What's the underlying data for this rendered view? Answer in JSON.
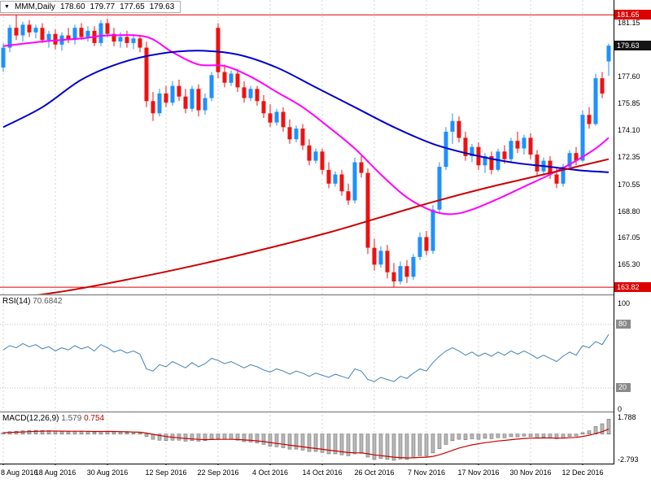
{
  "window": {
    "collapse_icon": "▼",
    "symbol_period": "MMM,Daily",
    "ohlc": {
      "open": "178.60",
      "high": "179.77",
      "low": "177.65",
      "close": "179.63"
    }
  },
  "colors": {
    "bull": "#1e90ff",
    "bear": "#ee1111",
    "ma_blue": "#0000cd",
    "ma_magenta": "#ff00ff",
    "ma_red": "#cc0000",
    "rsi_line": "#4682b4",
    "macd_bar_fill": "#b8b8b8",
    "macd_bar_stroke": "#6e6e6e",
    "macd_signal": "#cc0000",
    "level_line": "#dd0000",
    "badge_red": "#dd0000",
    "badge_dark": "#141414",
    "grid": "#d6d6d6",
    "separator": "#909090",
    "axis_line": "#000000"
  },
  "price_axis": {
    "labels": [
      {
        "text": "181.15",
        "price": 181.15
      },
      {
        "text": "177.60",
        "price": 177.6
      },
      {
        "text": "175.85",
        "price": 175.85
      },
      {
        "text": "174.10",
        "price": 174.1
      },
      {
        "text": "172.35",
        "price": 172.35
      },
      {
        "text": "170.55",
        "price": 170.55
      },
      {
        "text": "168.80",
        "price": 168.8
      },
      {
        "text": "167.05",
        "price": 167.05
      },
      {
        "text": "165.30",
        "price": 165.3
      }
    ],
    "badges": [
      {
        "text": "181.65",
        "price": 181.65,
        "style": "red"
      },
      {
        "text": "179.63",
        "price": 179.63,
        "style": "dark"
      },
      {
        "text": "163.82",
        "price": 163.82,
        "style": "red"
      }
    ]
  },
  "rsi_panel": {
    "name": "RSI(14)",
    "value": "70.6842",
    "axis": [
      {
        "text": "100",
        "v": 100,
        "badge": false
      },
      {
        "text": "80",
        "v": 80,
        "badge": true
      },
      {
        "text": "20",
        "v": 20,
        "badge": true
      },
      {
        "text": "0",
        "v": 0,
        "badge": false
      }
    ],
    "levels": [
      80,
      20
    ]
  },
  "macd_panel": {
    "name": "MACD(12,26,9)",
    "macd_value": "1.579",
    "signal_value": "0.754",
    "axis_max": {
      "text": "1.788",
      "v": 1.788
    },
    "axis_min": {
      "text": "-2.793",
      "v": -2.793
    }
  },
  "time_axis": {
    "labels": [
      "8 Aug 2016",
      "18 Aug 2016",
      "30 Aug 2016",
      "12 Sep 2016",
      "22 Sep 2016",
      "4 Oct 2016",
      "14 Oct 2016",
      "26 Oct 2016",
      "7 Nov 2016",
      "17 Nov 2016",
      "30 Nov 2016",
      "12 Dec 2016"
    ],
    "tick_indices": [
      0,
      8,
      16,
      25,
      33,
      41,
      49,
      57,
      65,
      73,
      81,
      89
    ]
  },
  "chart_data": [
    {
      "type": "candlestick",
      "title": "MMM Daily",
      "ylim": [
        163.4,
        182.3
      ],
      "high_level": 181.65,
      "low_level": 163.82,
      "last_candle": {
        "open": 178.6,
        "high": 179.77,
        "low": 177.65,
        "close": 179.63
      },
      "candles": [
        [
          178.2,
          179.8,
          177.9,
          179.5
        ],
        [
          179.5,
          181,
          179.2,
          180.8
        ],
        [
          180.8,
          181.65,
          180,
          180.3
        ],
        [
          180.3,
          181.2,
          179.9,
          181
        ],
        [
          181,
          181.3,
          180.2,
          180.5
        ],
        [
          180.5,
          181,
          180.1,
          180.8
        ],
        [
          180.8,
          181.1,
          179.8,
          180
        ],
        [
          180,
          180.6,
          179.5,
          180.4
        ],
        [
          180.4,
          180.7,
          179.4,
          179.7
        ],
        [
          179.7,
          180.5,
          179.3,
          180.3
        ],
        [
          180.3,
          180.8,
          179.8,
          180
        ],
        [
          180,
          181,
          179.7,
          180.8
        ],
        [
          180.8,
          181.1,
          180,
          180.2
        ],
        [
          180.2,
          180.9,
          179.9,
          180.6
        ],
        [
          180.6,
          180.9,
          179.6,
          179.8
        ],
        [
          179.8,
          181.3,
          179.6,
          181.1
        ],
        [
          181.1,
          181.4,
          180.2,
          180.4
        ],
        [
          180.4,
          180.8,
          179.6,
          179.9
        ],
        [
          179.9,
          180.5,
          179.5,
          180.2
        ],
        [
          180.2,
          180.6,
          179.5,
          179.8
        ],
        [
          179.8,
          180.4,
          179.4,
          180.1
        ],
        [
          180.1,
          180.3,
          179.2,
          179.5
        ],
        [
          179.5,
          179.9,
          175.6,
          176
        ],
        [
          176,
          176.6,
          174.7,
          175.2
        ],
        [
          175.2,
          176.8,
          175,
          176.5
        ],
        [
          176.5,
          177,
          175.6,
          175.9
        ],
        [
          175.9,
          177.3,
          175.7,
          177
        ],
        [
          177,
          177.4,
          176,
          176.3
        ],
        [
          176.3,
          176.8,
          175.2,
          175.5
        ],
        [
          175.5,
          177,
          175.3,
          176.8
        ],
        [
          176.8,
          177.1,
          175,
          175.4
        ],
        [
          175.4,
          176.5,
          175.1,
          176.2
        ],
        [
          176.2,
          177.9,
          176,
          177.7
        ],
        [
          180.8,
          181.1,
          177.5,
          177.9
        ],
        [
          177.9,
          178.4,
          176.9,
          177.2
        ],
        [
          177.2,
          178,
          177,
          177.8
        ],
        [
          177.8,
          178.1,
          176.6,
          176.9
        ],
        [
          176.9,
          177.3,
          175.9,
          176.2
        ],
        [
          176.2,
          177,
          176,
          176.8
        ],
        [
          176.8,
          177,
          175.7,
          176
        ],
        [
          176,
          176.4,
          174.9,
          175.2
        ],
        [
          175.2,
          175.8,
          174.3,
          174.6
        ],
        [
          174.6,
          175.5,
          174.4,
          175.3
        ],
        [
          175.3,
          175.6,
          174,
          174.3
        ],
        [
          174.3,
          174.8,
          173.2,
          173.5
        ],
        [
          173.5,
          174.4,
          173.3,
          174.2
        ],
        [
          174.2,
          174.5,
          172.8,
          173.1
        ],
        [
          173.1,
          173.5,
          171.8,
          172.1
        ],
        [
          172.1,
          172.9,
          171.9,
          172.7
        ],
        [
          172.7,
          172.9,
          171.2,
          171.5
        ],
        [
          171.5,
          172,
          170.3,
          170.6
        ],
        [
          170.6,
          171.4,
          170.4,
          171.2
        ],
        [
          171.2,
          171.5,
          169.8,
          170.1
        ],
        [
          170.1,
          170.6,
          169.2,
          169.5
        ],
        [
          169.5,
          172.3,
          169.3,
          172
        ],
        [
          172,
          172.4,
          171,
          171.3
        ],
        [
          171.3,
          171.6,
          166,
          166.4
        ],
        [
          166.4,
          167,
          164.9,
          165.3
        ],
        [
          165.3,
          166.5,
          165.1,
          166.2
        ],
        [
          166.2,
          166.6,
          164.4,
          164.8
        ],
        [
          164.8,
          165.4,
          163.82,
          164.2
        ],
        [
          164.2,
          165.5,
          164,
          165.2
        ],
        [
          165.2,
          165.6,
          164.1,
          164.5
        ],
        [
          164.5,
          166,
          164.3,
          165.8
        ],
        [
          165.8,
          167.4,
          165.6,
          167.1
        ],
        [
          167.1,
          167.5,
          165.9,
          166.2
        ],
        [
          166.2,
          169.2,
          166,
          168.9
        ],
        [
          168.9,
          172,
          168.7,
          171.7
        ],
        [
          171.7,
          174.3,
          171.5,
          174
        ],
        [
          174,
          175.2,
          173.2,
          174.7
        ],
        [
          174.7,
          175,
          173.3,
          173.6
        ],
        [
          173.6,
          174,
          172.1,
          172.4
        ],
        [
          172.4,
          173.2,
          172,
          173
        ],
        [
          173,
          173.3,
          171.5,
          171.8
        ],
        [
          171.8,
          172.6,
          171.3,
          172.4
        ],
        [
          172.4,
          172.7,
          171.2,
          171.5
        ],
        [
          171.5,
          172.9,
          171.4,
          172.7
        ],
        [
          172.7,
          173.1,
          171.9,
          172.2
        ],
        [
          172.2,
          173.6,
          172,
          173.4
        ],
        [
          173.4,
          174,
          172.6,
          172.9
        ],
        [
          172.9,
          173.8,
          172.5,
          173.6
        ],
        [
          173.6,
          173.9,
          172.2,
          172.5
        ],
        [
          172.5,
          172.8,
          171.1,
          171.4
        ],
        [
          171.4,
          172.3,
          171.2,
          172.1
        ],
        [
          172.1,
          172.4,
          170.9,
          171.2
        ],
        [
          171.2,
          171.6,
          170.3,
          170.6
        ],
        [
          170.6,
          171.9,
          170.4,
          171.7
        ],
        [
          171.7,
          172.8,
          171.5,
          172.6
        ],
        [
          172.6,
          173,
          171.8,
          172.1
        ],
        [
          172.1,
          175.4,
          172,
          175.1
        ],
        [
          175.1,
          175.6,
          174.2,
          174.5
        ],
        [
          174.5,
          177.8,
          174.4,
          177.5
        ],
        [
          177.5,
          177.9,
          176.2,
          176.5
        ],
        [
          178.6,
          179.77,
          177.65,
          179.63
        ]
      ],
      "overlays": [
        {
          "name": "ma-fast-magenta",
          "color_key": "ma_magenta",
          "points": [
            [
              0,
              179.6
            ],
            [
              6,
              179.9
            ],
            [
              12,
              180.1
            ],
            [
              16,
              180.3
            ],
            [
              22,
              180.2
            ],
            [
              26,
              179.2
            ],
            [
              30,
              178.4
            ],
            [
              34,
              178.3
            ],
            [
              38,
              177.6
            ],
            [
              42,
              176.6
            ],
            [
              46,
              175.6
            ],
            [
              50,
              174.3
            ],
            [
              54,
              172.9
            ],
            [
              58,
              171.2
            ],
            [
              62,
              169.7
            ],
            [
              66,
              168.8
            ],
            [
              69,
              168.6
            ],
            [
              72,
              168.9
            ],
            [
              76,
              169.6
            ],
            [
              80,
              170.4
            ],
            [
              84,
              171.2
            ],
            [
              88,
              172.1
            ],
            [
              91,
              172.9
            ],
            [
              93,
              173.6
            ]
          ]
        },
        {
          "name": "ma-mid-blue",
          "color_key": "ma_blue",
          "points": [
            [
              0,
              174.3
            ],
            [
              6,
              175.6
            ],
            [
              12,
              177.4
            ],
            [
              18,
              178.5
            ],
            [
              24,
              179.1
            ],
            [
              30,
              179.3
            ],
            [
              36,
              179.05
            ],
            [
              42,
              178.2
            ],
            [
              48,
              176.9
            ],
            [
              54,
              175.6
            ],
            [
              60,
              174.3
            ],
            [
              66,
              173.2
            ],
            [
              72,
              172.5
            ],
            [
              78,
              172.0
            ],
            [
              84,
              171.7
            ],
            [
              89,
              171.45
            ],
            [
              93,
              171.35
            ]
          ]
        },
        {
          "name": "ma-slow-red",
          "color_key": "ma_red",
          "points": [
            [
              0,
              163.0
            ],
            [
              10,
              163.6
            ],
            [
              20,
              164.4
            ],
            [
              30,
              165.3
            ],
            [
              40,
              166.3
            ],
            [
              50,
              167.4
            ],
            [
              58,
              168.4
            ],
            [
              66,
              169.4
            ],
            [
              74,
              170.3
            ],
            [
              80,
              170.9
            ],
            [
              84,
              171.3
            ],
            [
              88,
              171.7
            ],
            [
              91,
              172.0
            ],
            [
              93,
              172.2
            ]
          ]
        }
      ]
    },
    {
      "type": "line",
      "title": "RSI(14)",
      "ylim": [
        0,
        100
      ],
      "levels": [
        80,
        20
      ],
      "current": 70.6842,
      "values": [
        56,
        60,
        58,
        62,
        59,
        61,
        57,
        59,
        55,
        58,
        56,
        60,
        57,
        59,
        55,
        61,
        58,
        54,
        56,
        53,
        55,
        52,
        38,
        36,
        42,
        40,
        45,
        42,
        39,
        44,
        40,
        43,
        48,
        46,
        43,
        45,
        42,
        39,
        42,
        40,
        37,
        35,
        38,
        36,
        33,
        36,
        34,
        31,
        34,
        32,
        30,
        33,
        31,
        29,
        38,
        36,
        28,
        26,
        30,
        28,
        26,
        31,
        29,
        34,
        38,
        36,
        44,
        50,
        55,
        58,
        55,
        51,
        54,
        50,
        53,
        50,
        54,
        51,
        55,
        52,
        55,
        52,
        48,
        51,
        48,
        45,
        50,
        54,
        51,
        60,
        58,
        64,
        61,
        70.6842
      ]
    },
    {
      "type": "bar",
      "title": "MACD(12,26,9)",
      "ylim": [
        -2.793,
        1.788
      ],
      "macd_current": 1.579,
      "signal_current": 0.754,
      "values": [
        0.15,
        0.25,
        0.3,
        0.35,
        0.38,
        0.4,
        0.38,
        0.36,
        0.32,
        0.3,
        0.28,
        0.3,
        0.28,
        0.26,
        0.22,
        0.28,
        0.3,
        0.24,
        0.2,
        0.16,
        0.14,
        0.1,
        -0.25,
        -0.55,
        -0.65,
        -0.7,
        -0.65,
        -0.65,
        -0.75,
        -0.7,
        -0.75,
        -0.7,
        -0.55,
        -0.5,
        -0.55,
        -0.55,
        -0.65,
        -0.8,
        -0.85,
        -0.95,
        -1.1,
        -1.3,
        -1.35,
        -1.45,
        -1.6,
        -1.6,
        -1.7,
        -1.85,
        -1.85,
        -1.95,
        -2.1,
        -2.1,
        -2.2,
        -2.3,
        -2.1,
        -2.05,
        -2.45,
        -2.7,
        -2.6,
        -2.7,
        -2.79,
        -2.65,
        -2.7,
        -2.5,
        -2.3,
        -2.35,
        -2.0,
        -1.55,
        -1.1,
        -0.7,
        -0.55,
        -0.6,
        -0.5,
        -0.55,
        -0.45,
        -0.48,
        -0.38,
        -0.4,
        -0.28,
        -0.3,
        -0.22,
        -0.28,
        -0.4,
        -0.35,
        -0.42,
        -0.5,
        -0.4,
        -0.25,
        -0.22,
        0.15,
        0.35,
        0.8,
        1.1,
        1.579
      ]
    }
  ]
}
